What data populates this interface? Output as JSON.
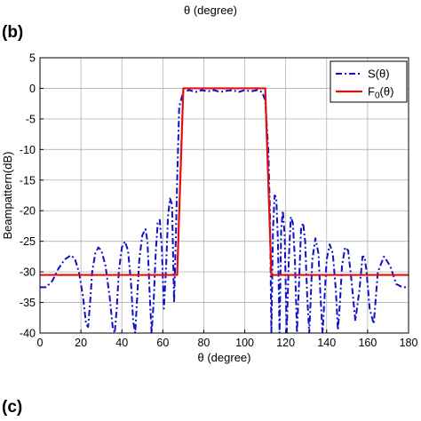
{
  "top_caption": "θ (degree)",
  "panel_labels": {
    "b": "(b)",
    "c": "(c)"
  },
  "colors": {
    "s_series": "#1010c8",
    "f_series": "#e01010",
    "grid": "#b0b0b0"
  },
  "chart_data": {
    "type": "line",
    "title": "",
    "xlabel": "θ (degree)",
    "ylabel": "Beampattern(dB)",
    "xlim": [
      0,
      180
    ],
    "ylim": [
      -40,
      5
    ],
    "xticks": [
      0,
      20,
      40,
      60,
      80,
      100,
      120,
      140,
      160,
      180
    ],
    "yticks": [
      5,
      0,
      -5,
      -10,
      -15,
      -20,
      -25,
      -30,
      -35,
      -40
    ],
    "grid": true,
    "legend_position": "top-right",
    "series": [
      {
        "name": "S(θ)",
        "style": "dash-dot",
        "x": [
          0,
          3,
          6,
          9,
          12,
          15,
          17,
          19,
          21,
          22.5,
          23.5,
          24.5,
          25.5,
          27,
          28.5,
          30,
          32,
          34,
          35.5,
          36.5,
          37.5,
          38.5,
          40,
          41.5,
          43,
          44.5,
          45.5,
          46.5,
          47.5,
          48.5,
          50,
          51.5,
          52.5,
          53.5,
          54.5,
          55.5,
          56.5,
          57.5,
          58.5,
          59.5,
          60.5,
          61.5,
          62.5,
          63.5,
          64.5,
          65.5,
          66.3,
          67,
          68,
          70,
          73,
          76,
          79,
          82,
          85,
          88,
          91,
          94,
          97,
          100,
          103,
          106,
          108.5,
          110,
          111.5,
          112.3,
          113,
          113.8,
          114.6,
          115.4,
          116.2,
          117,
          117.8,
          118.6,
          119.5,
          120.5,
          121.5,
          122.5,
          123.5,
          124.5,
          125.5,
          126.5,
          127.5,
          128.5,
          129.5,
          130.5,
          131.5,
          133,
          134.5,
          136,
          137,
          138,
          139,
          140,
          141.5,
          143,
          144.5,
          145.5,
          146.5,
          147.5,
          149,
          150.5,
          152,
          154,
          156,
          157.5,
          158.5,
          159.5,
          161,
          163,
          165,
          168,
          171,
          174,
          177,
          180
        ],
        "y": [
          -32.5,
          -32.5,
          -31.5,
          -29.5,
          -28,
          -27.3,
          -27.8,
          -30,
          -34,
          -38.5,
          -39,
          -35,
          -30,
          -27,
          -26,
          -26.5,
          -29,
          -34,
          -39,
          -40,
          -36,
          -30,
          -26,
          -25,
          -26.5,
          -32,
          -38,
          -40,
          -34,
          -28,
          -24,
          -23,
          -25,
          -33,
          -40,
          -35,
          -27,
          -22,
          -21.5,
          -26,
          -36,
          -30,
          -21,
          -18,
          -19,
          -35,
          -25,
          -15,
          -3,
          -0.5,
          -0.3,
          -0.6,
          -0.3,
          -0.5,
          -0.3,
          -0.6,
          -0.4,
          -0.3,
          -0.6,
          -0.3,
          -0.5,
          -0.3,
          -0.6,
          -2,
          -10,
          -20,
          -40,
          -23,
          -17.5,
          -17.8,
          -25,
          -40,
          -23,
          -20,
          -24,
          -40,
          -28,
          -21,
          -22,
          -28,
          -40,
          -32,
          -23,
          -22,
          -25,
          -34,
          -40,
          -28,
          -24.5,
          -27,
          -34,
          -40,
          -34,
          -28,
          -25.5,
          -27,
          -33,
          -39.5,
          -35,
          -29,
          -26,
          -26.5,
          -31,
          -38,
          -33,
          -27.5,
          -27.5,
          -30,
          -36,
          -38.5,
          -30,
          -27.5,
          -29,
          -32,
          -32.5,
          -32.5
        ]
      },
      {
        "name": "F0(θ)",
        "style": "solid",
        "x": [
          0,
          67,
          70,
          110,
          113,
          180
        ],
        "y": [
          -30.5,
          -30.5,
          0,
          0,
          -30.5,
          -30.5
        ]
      }
    ]
  },
  "legend": {
    "items": [
      {
        "label_main": "S(θ)",
        "label_sub": ""
      },
      {
        "label_main": "F",
        "label_sub": "0",
        "label_tail": "(θ)"
      }
    ]
  }
}
